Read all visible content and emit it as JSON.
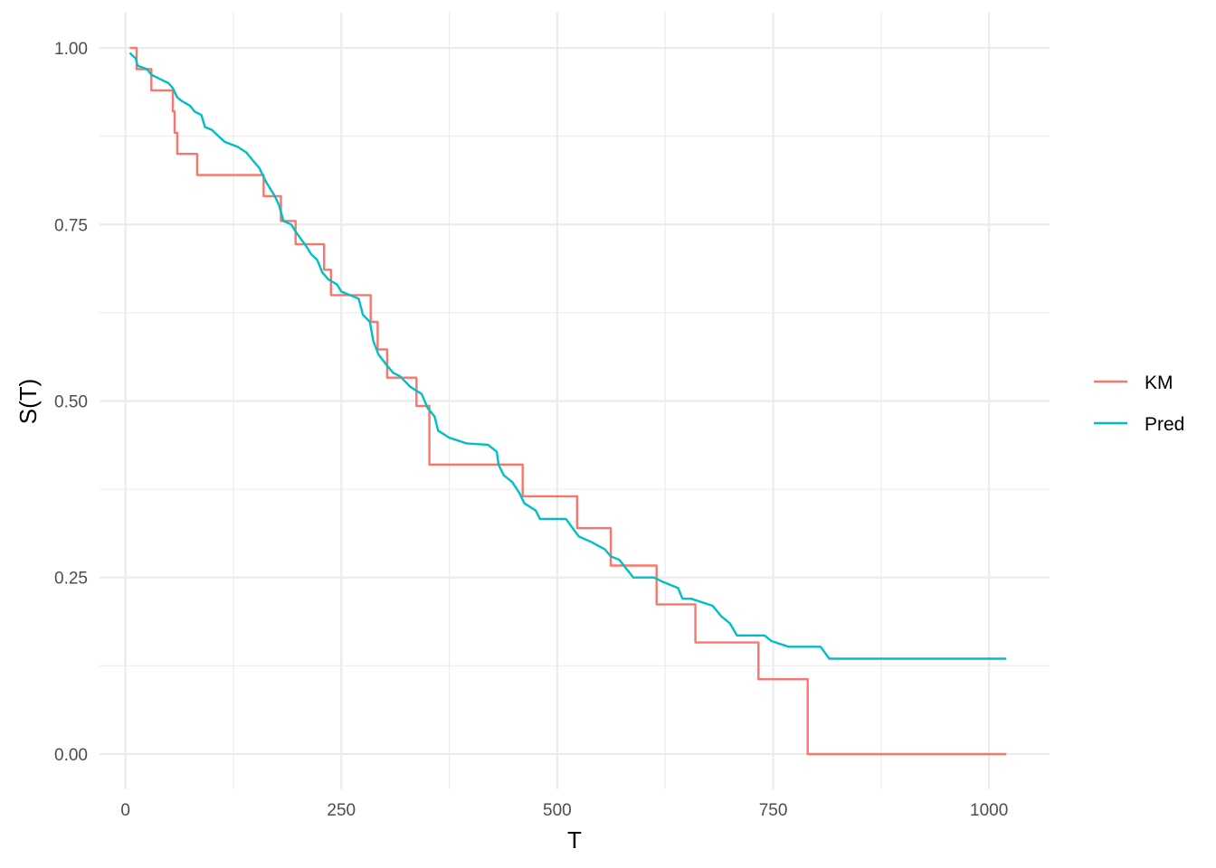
{
  "chart_data": {
    "type": "line",
    "title": "",
    "xlabel": "T",
    "ylabel": "S(T)",
    "xlim": [
      -30,
      1070
    ],
    "ylim": [
      -0.05,
      1.05
    ],
    "x_ticks": [
      0,
      250,
      500,
      750,
      1000
    ],
    "x_tick_labels": [
      "0",
      "250",
      "500",
      "750",
      "1000"
    ],
    "y_ticks": [
      0,
      0.25,
      0.5,
      0.75,
      1.0
    ],
    "y_tick_labels": [
      "0.00",
      "0.25",
      "0.50",
      "0.75",
      "1.00"
    ],
    "grid": true,
    "legend_position": "right",
    "series": [
      {
        "name": "KM",
        "color": "#F8766D",
        "step": true,
        "points": [
          [
            5,
            1.0
          ],
          [
            13,
            0.97
          ],
          [
            30,
            0.94
          ],
          [
            55,
            0.91
          ],
          [
            57,
            0.88
          ],
          [
            60,
            0.85
          ],
          [
            83,
            0.82
          ],
          [
            160,
            0.79
          ],
          [
            180,
            0.755
          ],
          [
            197,
            0.722
          ],
          [
            230,
            0.686
          ],
          [
            238,
            0.65
          ],
          [
            284,
            0.612
          ],
          [
            292,
            0.573
          ],
          [
            303,
            0.533
          ],
          [
            337,
            0.493
          ],
          [
            352,
            0.41
          ],
          [
            460,
            0.365
          ],
          [
            523,
            0.32
          ],
          [
            562,
            0.267
          ],
          [
            585,
            0.267
          ],
          [
            615,
            0.212
          ],
          [
            645,
            0.212
          ],
          [
            660,
            0.158
          ],
          [
            710,
            0.158
          ],
          [
            733,
            0.106
          ],
          [
            767,
            0.106
          ],
          [
            790,
            0.0
          ],
          [
            1020,
            0.0
          ]
        ]
      },
      {
        "name": "Pred",
        "color": "#00BFC4",
        "step": false,
        "points": [
          [
            5,
            0.993
          ],
          [
            12,
            0.985
          ],
          [
            14,
            0.975
          ],
          [
            25,
            0.97
          ],
          [
            30,
            0.962
          ],
          [
            50,
            0.95
          ],
          [
            55,
            0.943
          ],
          [
            60,
            0.93
          ],
          [
            65,
            0.925
          ],
          [
            75,
            0.918
          ],
          [
            80,
            0.91
          ],
          [
            88,
            0.905
          ],
          [
            92,
            0.888
          ],
          [
            100,
            0.884
          ],
          [
            108,
            0.875
          ],
          [
            115,
            0.867
          ],
          [
            130,
            0.86
          ],
          [
            140,
            0.852
          ],
          [
            148,
            0.84
          ],
          [
            155,
            0.83
          ],
          [
            163,
            0.81
          ],
          [
            168,
            0.8
          ],
          [
            173,
            0.79
          ],
          [
            178,
            0.777
          ],
          [
            183,
            0.755
          ],
          [
            192,
            0.75
          ],
          [
            197,
            0.74
          ],
          [
            203,
            0.73
          ],
          [
            210,
            0.718
          ],
          [
            215,
            0.708
          ],
          [
            222,
            0.7
          ],
          [
            228,
            0.682
          ],
          [
            235,
            0.672
          ],
          [
            245,
            0.665
          ],
          [
            250,
            0.655
          ],
          [
            270,
            0.645
          ],
          [
            275,
            0.622
          ],
          [
            283,
            0.612
          ],
          [
            287,
            0.585
          ],
          [
            293,
            0.566
          ],
          [
            303,
            0.55
          ],
          [
            310,
            0.54
          ],
          [
            318,
            0.535
          ],
          [
            330,
            0.52
          ],
          [
            343,
            0.51
          ],
          [
            350,
            0.49
          ],
          [
            358,
            0.478
          ],
          [
            362,
            0.458
          ],
          [
            375,
            0.448
          ],
          [
            395,
            0.44
          ],
          [
            420,
            0.438
          ],
          [
            430,
            0.428
          ],
          [
            432,
            0.41
          ],
          [
            438,
            0.395
          ],
          [
            448,
            0.385
          ],
          [
            456,
            0.37
          ],
          [
            462,
            0.355
          ],
          [
            475,
            0.345
          ],
          [
            480,
            0.333
          ],
          [
            510,
            0.333
          ],
          [
            525,
            0.308
          ],
          [
            540,
            0.3
          ],
          [
            555,
            0.29
          ],
          [
            562,
            0.28
          ],
          [
            572,
            0.275
          ],
          [
            588,
            0.25
          ],
          [
            612,
            0.25
          ],
          [
            620,
            0.245
          ],
          [
            640,
            0.235
          ],
          [
            645,
            0.22
          ],
          [
            655,
            0.22
          ],
          [
            680,
            0.21
          ],
          [
            690,
            0.195
          ],
          [
            700,
            0.185
          ],
          [
            708,
            0.168
          ],
          [
            740,
            0.168
          ],
          [
            748,
            0.16
          ],
          [
            768,
            0.152
          ],
          [
            805,
            0.152
          ],
          [
            815,
            0.135
          ],
          [
            1020,
            0.135
          ]
        ]
      }
    ]
  }
}
